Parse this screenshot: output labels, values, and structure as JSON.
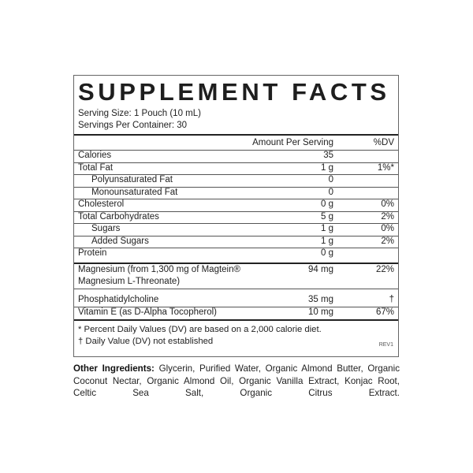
{
  "title": "SUPPLEMENT FACTS",
  "serving_size": "Serving Size: 1 Pouch (10 mL)",
  "servings_per_container": "Servings Per Container: 30",
  "header": {
    "amount": "Amount Per Serving",
    "dv": "%DV"
  },
  "rows": [
    {
      "name": "Calories",
      "amount": "35",
      "dv": ""
    },
    {
      "name": "Total Fat",
      "amount": "1 g",
      "dv": "1%*"
    },
    {
      "name": "Polyunsaturated Fat",
      "amount": "0",
      "dv": ""
    },
    {
      "name": "Monounsaturated Fat",
      "amount": "0",
      "dv": ""
    },
    {
      "name": "Cholesterol",
      "amount": "0 g",
      "dv": "0%"
    },
    {
      "name": "Total Carbohydrates",
      "amount": "5 g",
      "dv": "2%"
    },
    {
      "name": "Sugars",
      "amount": "1 g",
      "dv": "0%"
    },
    {
      "name": "Added Sugars",
      "amount": "1 g",
      "dv": "2%"
    },
    {
      "name": "Protein",
      "amount": "0 g",
      "dv": ""
    }
  ],
  "rows2": [
    {
      "name": "Magnesium (from 1,300 mg of Magtein®",
      "name2": "Magnesium L-Threonate)",
      "amount": "94 mg",
      "dv": "22%"
    },
    {
      "name": "Phosphatidylcholine",
      "amount": "35 mg",
      "dv": "†"
    },
    {
      "name": "Vitamin E (as D-Alpha Tocopherol)",
      "amount": "10 mg",
      "dv": "67%"
    }
  ],
  "footnotes": [
    "* Percent Daily Values (DV) are based on a 2,000 calorie diet.",
    "† Daily Value (DV) not established"
  ],
  "revision": "REV1",
  "other_ingredients": {
    "label": "Other Ingredients:",
    "text": " Glycerin, Purified Water, Organic Almond Butter, Organic Coconut Nectar, Organic Almond Oil, Organic Vanilla Extract, Konjac Root, Celtic Sea Salt, Organic Citrus Extract."
  }
}
